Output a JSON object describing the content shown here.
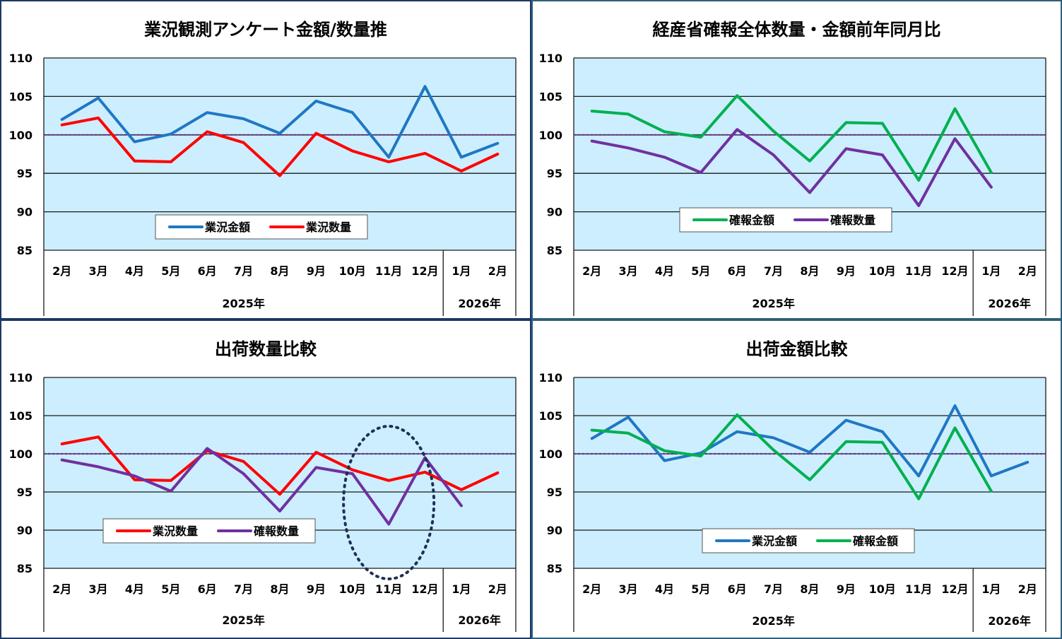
{
  "chart_data": [
    {
      "type": "line",
      "title": "業況観測アンケート金額/数量推",
      "categories": [
        "2月",
        "3月",
        "4月",
        "5月",
        "6月",
        "7月",
        "8月",
        "9月",
        "10月",
        "11月",
        "12月",
        "1月",
        "2月"
      ],
      "year_groups": [
        {
          "label": "2025年",
          "count": 11
        },
        {
          "label": "2026年",
          "count": 2
        }
      ],
      "ylim": [
        85,
        110
      ],
      "yticks": [
        85,
        90,
        95,
        100,
        105,
        110
      ],
      "reference_line": 100,
      "legend_position": "bottom-center",
      "series": [
        {
          "name": "業況金額",
          "color": "#1f77c4",
          "values": [
            102.0,
            104.8,
            99.1,
            100.1,
            102.9,
            102.1,
            100.2,
            104.4,
            102.9,
            97.1,
            106.3,
            97.1,
            98.9
          ]
        },
        {
          "name": "業況数量",
          "color": "#ff0000",
          "values": [
            101.3,
            102.2,
            96.6,
            96.5,
            100.4,
            99.0,
            94.7,
            100.2,
            97.9,
            96.5,
            97.6,
            95.3,
            97.5
          ]
        }
      ]
    },
    {
      "type": "line",
      "title": "経産省確報全体数量・金額前年同月比",
      "categories": [
        "2月",
        "3月",
        "4月",
        "5月",
        "6月",
        "7月",
        "8月",
        "9月",
        "10月",
        "11月",
        "12月",
        "1月",
        "2月"
      ],
      "year_groups": [
        {
          "label": "2025年",
          "count": 11
        },
        {
          "label": "2026年",
          "count": 2
        }
      ],
      "ylim": [
        85,
        110
      ],
      "yticks": [
        85,
        90,
        95,
        100,
        105,
        110
      ],
      "reference_line": 100,
      "legend_position": "bottom-center",
      "series": [
        {
          "name": "確報金額",
          "color": "#00b050",
          "values": [
            103.1,
            102.7,
            100.4,
            99.7,
            105.1,
            100.5,
            96.6,
            101.6,
            101.5,
            94.1,
            103.4,
            95.1,
            null
          ]
        },
        {
          "name": "確報数量",
          "color": "#7030a0",
          "values": [
            99.2,
            98.3,
            97.1,
            95.1,
            100.7,
            97.4,
            92.5,
            98.2,
            97.4,
            90.8,
            99.5,
            93.2,
            null
          ]
        }
      ]
    },
    {
      "type": "line",
      "title": "出荷数量比較",
      "categories": [
        "2月",
        "3月",
        "4月",
        "5月",
        "6月",
        "7月",
        "8月",
        "9月",
        "10月",
        "11月",
        "12月",
        "1月",
        "2月"
      ],
      "year_groups": [
        {
          "label": "2025年",
          "count": 11
        },
        {
          "label": "2026年",
          "count": 2
        }
      ],
      "ylim": [
        85,
        110
      ],
      "yticks": [
        85,
        90,
        95,
        100,
        105,
        110
      ],
      "reference_line": 100,
      "legend_position": "bottom-left",
      "annotation": "dotted ellipse highlighting 11月",
      "series": [
        {
          "name": "業況数量",
          "color": "#ff0000",
          "values": [
            101.3,
            102.2,
            96.6,
            96.5,
            100.4,
            99.0,
            94.7,
            100.2,
            97.9,
            96.5,
            97.6,
            95.3,
            97.5
          ]
        },
        {
          "name": "確報数量",
          "color": "#7030a0",
          "values": [
            99.2,
            98.3,
            97.1,
            95.1,
            100.7,
            97.4,
            92.5,
            98.2,
            97.4,
            90.8,
            99.5,
            93.2,
            null
          ]
        }
      ]
    },
    {
      "type": "line",
      "title": "出荷金額比較",
      "categories": [
        "2月",
        "3月",
        "4月",
        "5月",
        "6月",
        "7月",
        "8月",
        "9月",
        "10月",
        "11月",
        "12月",
        "1月",
        "2月"
      ],
      "year_groups": [
        {
          "label": "2025年",
          "count": 11
        },
        {
          "label": "2026年",
          "count": 2
        }
      ],
      "ylim": [
        85,
        110
      ],
      "yticks": [
        85,
        90,
        95,
        100,
        105,
        110
      ],
      "reference_line": 100,
      "legend_position": "bottom-center",
      "series": [
        {
          "name": "業況金額",
          "color": "#1f77c4",
          "values": [
            102.0,
            104.8,
            99.1,
            100.1,
            102.9,
            102.1,
            100.2,
            104.4,
            102.9,
            97.1,
            106.3,
            97.1,
            98.9
          ]
        },
        {
          "name": "確報金額",
          "color": "#00b050",
          "values": [
            103.1,
            102.7,
            100.4,
            99.7,
            105.1,
            100.5,
            96.6,
            101.6,
            101.5,
            94.1,
            103.4,
            95.1,
            null
          ]
        }
      ]
    }
  ]
}
